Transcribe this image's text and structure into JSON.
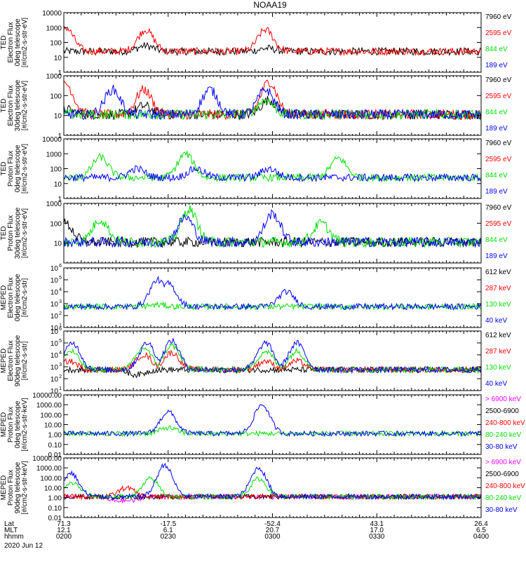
{
  "title": "NOAA19",
  "date": "2020 Jun 12",
  "footer": {
    "row_labels": [
      "Lat",
      "MLT",
      "hhmm"
    ],
    "columns": [
      {
        "lat": "71.3",
        "mlt": "12.1",
        "hhmm": "0200"
      },
      {
        "lat": "-17.5",
        "mlt": "6.1",
        "hhmm": "0230"
      },
      {
        "lat": "-52.4",
        "mlt": "20.7",
        "hhmm": "0300"
      },
      {
        "lat": "43.1",
        "mlt": "17.0",
        "hhmm": "0330"
      },
      {
        "lat": "26.4",
        "mlt": "6.5",
        "hhmm": "0400"
      }
    ]
  },
  "colors": {
    "black": "#000000",
    "red": "#ff0000",
    "green": "#00e000",
    "blue": "#0000ff",
    "magenta": "#ff00ff"
  },
  "chart_data": [
    {
      "type": "line",
      "panel": "ted-electron-0deg",
      "ylabel": [
        "TED",
        "Electron Flux",
        "0deg telescope",
        "[#/cm2-s-str-eV]"
      ],
      "yscale": "log",
      "ylim": [
        1,
        10000
      ],
      "ytick_values": [
        1,
        10,
        100,
        1000,
        10000
      ],
      "ytick_labels": [
        "1",
        "10",
        "100",
        "1000",
        "10000"
      ],
      "x": [
        "0200",
        "0230",
        "0300",
        "0330",
        "0400"
      ],
      "series": [
        {
          "name": "7960 eV",
          "color": "#000000",
          "peaks": [
            [
              0.5,
              8
            ],
            [
              23.5,
              60
            ],
            [
              58.5,
              40
            ],
            [
              78,
              10
            ]
          ]
        },
        {
          "name": "2595 eV",
          "color": "#ff0000",
          "peaks": [
            [
              0.5,
              1000
            ],
            [
              23.5,
              700
            ],
            [
              58,
              700
            ]
          ]
        },
        {
          "name": "844 eV",
          "color": "#00e000",
          "peaks": []
        },
        {
          "name": "189 eV",
          "color": "#0000ff",
          "peaks": []
        }
      ]
    },
    {
      "type": "line",
      "panel": "ted-electron-30deg",
      "ylabel": [
        "TED",
        "Electron Flux",
        "30deg telescope",
        "[#/cm2-s-str-eV]"
      ],
      "yscale": "log",
      "ylim": [
        1,
        1000
      ],
      "ytick_values": [
        1,
        10,
        100,
        1000
      ],
      "ytick_labels": [
        "1",
        "10",
        "100",
        "1000"
      ],
      "x": [
        "0200",
        "0230",
        "0300",
        "0330",
        "0400"
      ],
      "series": [
        {
          "name": "7960 eV",
          "color": "#000000",
          "peaks": [
            [
              0.5,
              20
            ],
            [
              23,
              30
            ],
            [
              59,
              60
            ],
            [
              79,
              5
            ]
          ]
        },
        {
          "name": "2595 eV",
          "color": "#ff0000",
          "peaks": [
            [
              0.5,
              400
            ],
            [
              23,
              200
            ],
            [
              59,
              500
            ]
          ]
        },
        {
          "name": "844 eV",
          "color": "#00e000",
          "peaks": [
            [
              58,
              60
            ]
          ]
        },
        {
          "name": "189 eV",
          "color": "#0000ff",
          "peaks": [
            [
              14,
              200
            ],
            [
              42,
              200
            ],
            [
              58,
              200
            ]
          ]
        }
      ]
    },
    {
      "type": "line",
      "panel": "ted-proton-0deg",
      "ylabel": [
        "TED",
        "Proton Flux",
        "0deg telescope",
        "[#/cm2-s-str-eV]"
      ],
      "yscale": "log",
      "ylim": [
        1,
        10000
      ],
      "ytick_values": [
        1,
        10,
        100,
        1000,
        10000
      ],
      "ytick_labels": [
        "1",
        "10",
        "100",
        "1000",
        "10000"
      ],
      "x": [
        "0200",
        "0230",
        "0300",
        "0330",
        "0400"
      ],
      "series": [
        {
          "name": "7960 eV",
          "color": "#000000",
          "peaks": []
        },
        {
          "name": "2595 eV",
          "color": "#ff0000",
          "peaks": []
        },
        {
          "name": "844 eV",
          "color": "#00e000",
          "peaks": [
            [
              10.5,
              600
            ],
            [
              35,
              1000
            ],
            [
              79,
              500
            ]
          ]
        },
        {
          "name": "189 eV",
          "color": "#0000ff",
          "peaks": [
            [
              21,
              100
            ],
            [
              38,
              100
            ],
            [
              59,
              100
            ]
          ]
        }
      ]
    },
    {
      "type": "line",
      "panel": "ted-proton-30deg",
      "ylabel": [
        "TED",
        "Proton Flux",
        "30deg telescope",
        "[#/cm2-s-str-eV]"
      ],
      "yscale": "log",
      "ylim": [
        1,
        1000
      ],
      "ytick_values": [
        10,
        100,
        1000
      ],
      "ytick_labels": [
        "10",
        "100",
        "1000"
      ],
      "x": [
        "0200",
        "0230",
        "0300",
        "0330",
        "0400"
      ],
      "series": [
        {
          "name": "7960 eV",
          "color": "#000000",
          "peaks": [
            [
              0.3,
              100
            ]
          ]
        },
        {
          "name": "2595 eV",
          "color": "#ff0000",
          "peaks": []
        },
        {
          "name": "844 eV",
          "color": "#00e000",
          "peaks": [
            [
              10.5,
              150
            ],
            [
              36,
              500
            ],
            [
              74,
              100
            ]
          ]
        },
        {
          "name": "189 eV",
          "color": "#0000ff",
          "peaks": [
            [
              35,
              200
            ],
            [
              60,
              300
            ]
          ]
        }
      ]
    },
    {
      "type": "line",
      "panel": "meped-electron-0deg",
      "ylabel": [
        "MEPED",
        "Electron Flux",
        "0deg telescope",
        "[#/cm2-s-str]"
      ],
      "yscale": "log",
      "ylim": [
        10,
        1000000
      ],
      "ytick_values": [
        10,
        100,
        1000,
        10000,
        100000,
        1000000
      ],
      "ytick_labels": [
        "10",
        "10",
        "10",
        "10",
        "10",
        "10"
      ],
      "ytick_exponents": [
        "1",
        "2",
        "3",
        "4",
        "5",
        "6"
      ],
      "x": [
        "0200",
        "0230",
        "0300",
        "0330",
        "0400"
      ],
      "series": [
        {
          "name": "612 keV",
          "color": "#000000",
          "peaks": []
        },
        {
          "name": "287 keV",
          "color": "#ff0000",
          "peaks": []
        },
        {
          "name": "130 keV",
          "color": "#00e000",
          "peaks": [
            [
              27,
              800
            ]
          ]
        },
        {
          "name": "40 keV",
          "color": "#0000ff",
          "peaks": [
            [
              27,
              100000
            ],
            [
              30,
              50000
            ],
            [
              64,
              10000
            ]
          ]
        }
      ]
    },
    {
      "type": "line",
      "panel": "meped-electron-90deg",
      "ylabel": [
        "MEPED",
        "Electron Flux",
        "90deg telescope",
        "[#/cm2-s-str]"
      ],
      "yscale": "log",
      "ylim": [
        10,
        1000000
      ],
      "ytick_values": [
        10,
        100,
        1000,
        10000,
        100000,
        1000000
      ],
      "ytick_labels": [
        "10",
        "10",
        "10",
        "10",
        "10",
        "10"
      ],
      "ytick_exponents": [
        "1",
        "2",
        "3",
        "4",
        "5",
        "6"
      ],
      "x": [
        "0200",
        "0230",
        "0300",
        "0330",
        "0400"
      ],
      "series": [
        {
          "name": "612 keV",
          "color": "#000000",
          "peaks": [
            [
              21,
              200
            ]
          ]
        },
        {
          "name": "287 keV",
          "color": "#ff0000",
          "peaks": [
            [
              1.5,
              3000
            ],
            [
              23,
              10000
            ],
            [
              31,
              15000
            ],
            [
              58,
              3000
            ],
            [
              67,
              3000
            ]
          ]
        },
        {
          "name": "130 keV",
          "color": "#00e000",
          "peaks": [
            [
              2,
              20000
            ],
            [
              23,
              40000
            ],
            [
              31,
              60000
            ],
            [
              58,
              20000
            ],
            [
              67,
              20000
            ]
          ]
        },
        {
          "name": "40 keV",
          "color": "#0000ff",
          "peaks": [
            [
              2.5,
              100000
            ],
            [
              24,
              100000
            ],
            [
              31,
              150000
            ],
            [
              58,
              100000
            ],
            [
              67,
              100000
            ]
          ]
        }
      ]
    },
    {
      "type": "line",
      "panel": "meped-proton-0deg",
      "ylabel": [
        "MEPED",
        "Proton Flux",
        "0deg telescope",
        "[#/cm2-s-str-keV]"
      ],
      "yscale": "log",
      "ylim": [
        0.01,
        10000
      ],
      "ytick_values": [
        0.01,
        0.1,
        1,
        10,
        100,
        1000,
        10000
      ],
      "ytick_labels": [
        "0.01",
        "0.10",
        "1.00",
        "10.00",
        "100.00",
        "1000.00",
        "10000.00"
      ],
      "x": [
        "0200",
        "0230",
        "0300",
        "0330",
        "0400"
      ],
      "series": [
        {
          "name": "> 6900 keV",
          "color": "#ff00ff",
          "peaks": []
        },
        {
          "name": "2500-6900",
          "color": "#000000",
          "peaks": []
        },
        {
          "name": "240-800 keV",
          "color": "#ff0000",
          "peaks": []
        },
        {
          "name": "80-240 keV",
          "color": "#00e000",
          "peaks": [
            [
              30,
              5
            ]
          ]
        },
        {
          "name": "30-80 keV",
          "color": "#0000ff",
          "peaks": [
            [
              30,
              200
            ],
            [
              57,
              1000
            ]
          ]
        }
      ]
    },
    {
      "type": "line",
      "panel": "meped-proton-90deg",
      "ylabel": [
        "MEPED",
        "Proton Flux",
        "90deg telescope",
        "[#/cm2-s-str-keV]"
      ],
      "yscale": "log",
      "ylim": [
        0.01,
        10000
      ],
      "ytick_values": [
        0.01,
        0.1,
        1,
        10,
        100,
        1000,
        10000
      ],
      "ytick_labels": [
        "0.01",
        "0.10",
        "1.00",
        "10.00",
        "100.00",
        "1000.00",
        "10000.00"
      ],
      "x": [
        "0200",
        "0230",
        "0300",
        "0330",
        "0400"
      ],
      "series": [
        {
          "name": "> 6900 keV",
          "color": "#ff00ff",
          "peaks": [
            [
              17,
              0.02
            ]
          ]
        },
        {
          "name": "2500-6900",
          "color": "#000000",
          "peaks": [
            [
              17,
              1
            ]
          ]
        },
        {
          "name": "240-800 keV",
          "color": "#ff0000",
          "peaks": [
            [
              18,
              10
            ]
          ]
        },
        {
          "name": "80-240 keV",
          "color": "#00e000",
          "peaks": [
            [
              2.5,
              30
            ],
            [
              25,
              80
            ],
            [
              56,
              80
            ]
          ]
        },
        {
          "name": "30-80 keV",
          "color": "#0000ff",
          "peaks": [
            [
              2,
              300
            ],
            [
              29,
              2000
            ],
            [
              56,
              1000
            ]
          ]
        }
      ]
    }
  ]
}
